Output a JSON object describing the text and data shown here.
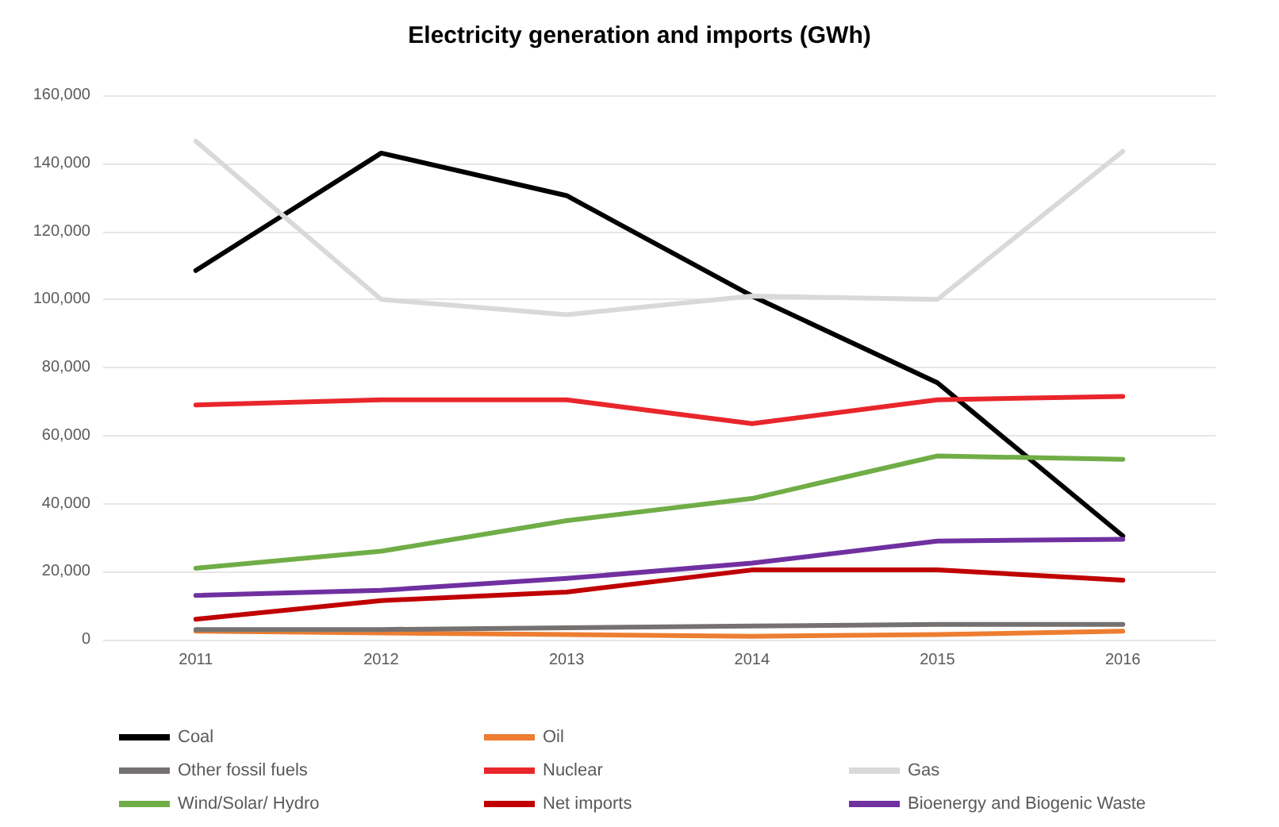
{
  "chart_data": {
    "type": "line",
    "title": "Electricity generation and imports (GWh)",
    "categories": [
      "2011",
      "2012",
      "2013",
      "2014",
      "2015",
      "2016"
    ],
    "series": [
      {
        "name": "Coal",
        "color": "#000000",
        "values": [
          108500,
          143000,
          130500,
          101000,
          75500,
          30500
        ]
      },
      {
        "name": "Oil",
        "color": "#ed7d31",
        "values": [
          2500,
          2000,
          1500,
          1000,
          1500,
          2500
        ]
      },
      {
        "name": "Gas",
        "color": "#d9d9d9",
        "values": [
          146500,
          100000,
          95500,
          101000,
          100000,
          143500
        ]
      },
      {
        "name": "Other fossil fuels",
        "color": "#767171",
        "values": [
          3000,
          3000,
          3500,
          4000,
          4500,
          4500
        ]
      },
      {
        "name": "Nuclear",
        "color": "#e8262b",
        "values": [
          69000,
          70500,
          70500,
          63500,
          70500,
          71500
        ]
      },
      {
        "name": "Bioenergy and Biogenic Waste",
        "color": "#7030a0",
        "values": [
          13000,
          14500,
          18000,
          22500,
          29000,
          29500
        ]
      },
      {
        "name": "Wind/Solar/ Hydro",
        "color": "#70ad47",
        "values": [
          21000,
          26000,
          35000,
          41500,
          54000,
          53000
        ]
      },
      {
        "name": "Net imports",
        "color": "#c00000",
        "values": [
          6000,
          11500,
          14000,
          20500,
          20500,
          17500
        ]
      }
    ],
    "ylim": [
      0,
      160000
    ],
    "yticks": [
      0,
      {
        "value": 20000,
        "label": "20,000"
      },
      {
        "value": 40000,
        "label": "40,000"
      },
      {
        "value": 60000,
        "label": "60,000"
      },
      {
        "value": 80000,
        "label": "80,000"
      },
      {
        "value": 100000,
        "label": "100,000"
      },
      {
        "value": 120000,
        "label": "120,000"
      },
      {
        "value": 140000,
        "label": "140,000"
      },
      {
        "value": 160000,
        "label": "160,000"
      }
    ],
    "grid": "y",
    "legend": "bottom",
    "marker": "none",
    "line_style": "solid"
  }
}
